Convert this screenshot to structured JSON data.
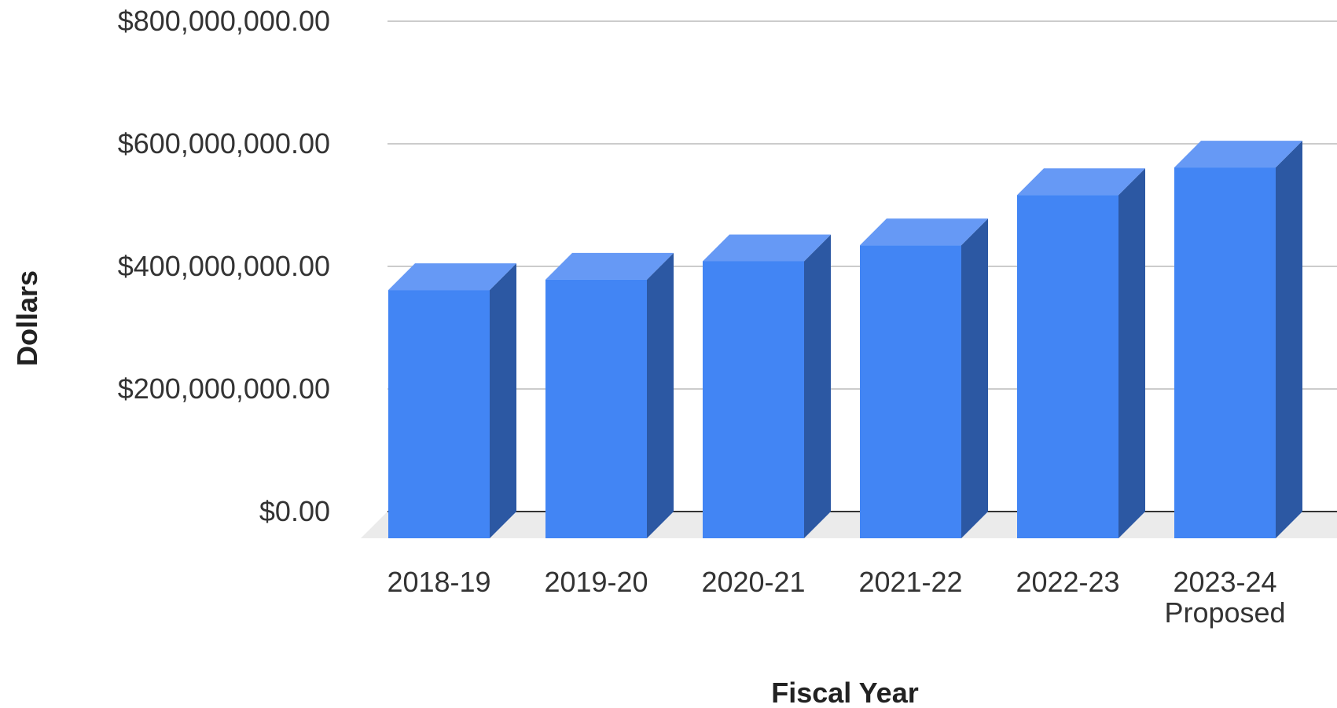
{
  "chart_data": {
    "type": "bar",
    "style": "3d",
    "title": "",
    "xlabel": "Fiscal Year",
    "ylabel": "Dollars",
    "categories": [
      "2018-19",
      "2019-20",
      "2020-21",
      "2021-22",
      "2022-23",
      "2023-24 Proposed"
    ],
    "series": [
      {
        "values": [
          405000000,
          422000000,
          452000000,
          478000000,
          560000000,
          605000000
        ]
      }
    ],
    "ylim": [
      0,
      800000000
    ],
    "yticks": [
      0,
      200000000,
      400000000,
      600000000,
      800000000
    ],
    "ytick_labels": [
      "$0.00",
      "$200,000,000.00",
      "$400,000,000.00",
      "$600,000,000.00",
      "$800,000,000.00"
    ],
    "grid": true,
    "legend": "none",
    "colors": {
      "bar_front": "#4285f4",
      "bar_top": "#6699f5",
      "bar_side": "#2c58a3",
      "grid": "#cccccc",
      "baseline": "#333333",
      "floor": "#ebebeb"
    }
  }
}
